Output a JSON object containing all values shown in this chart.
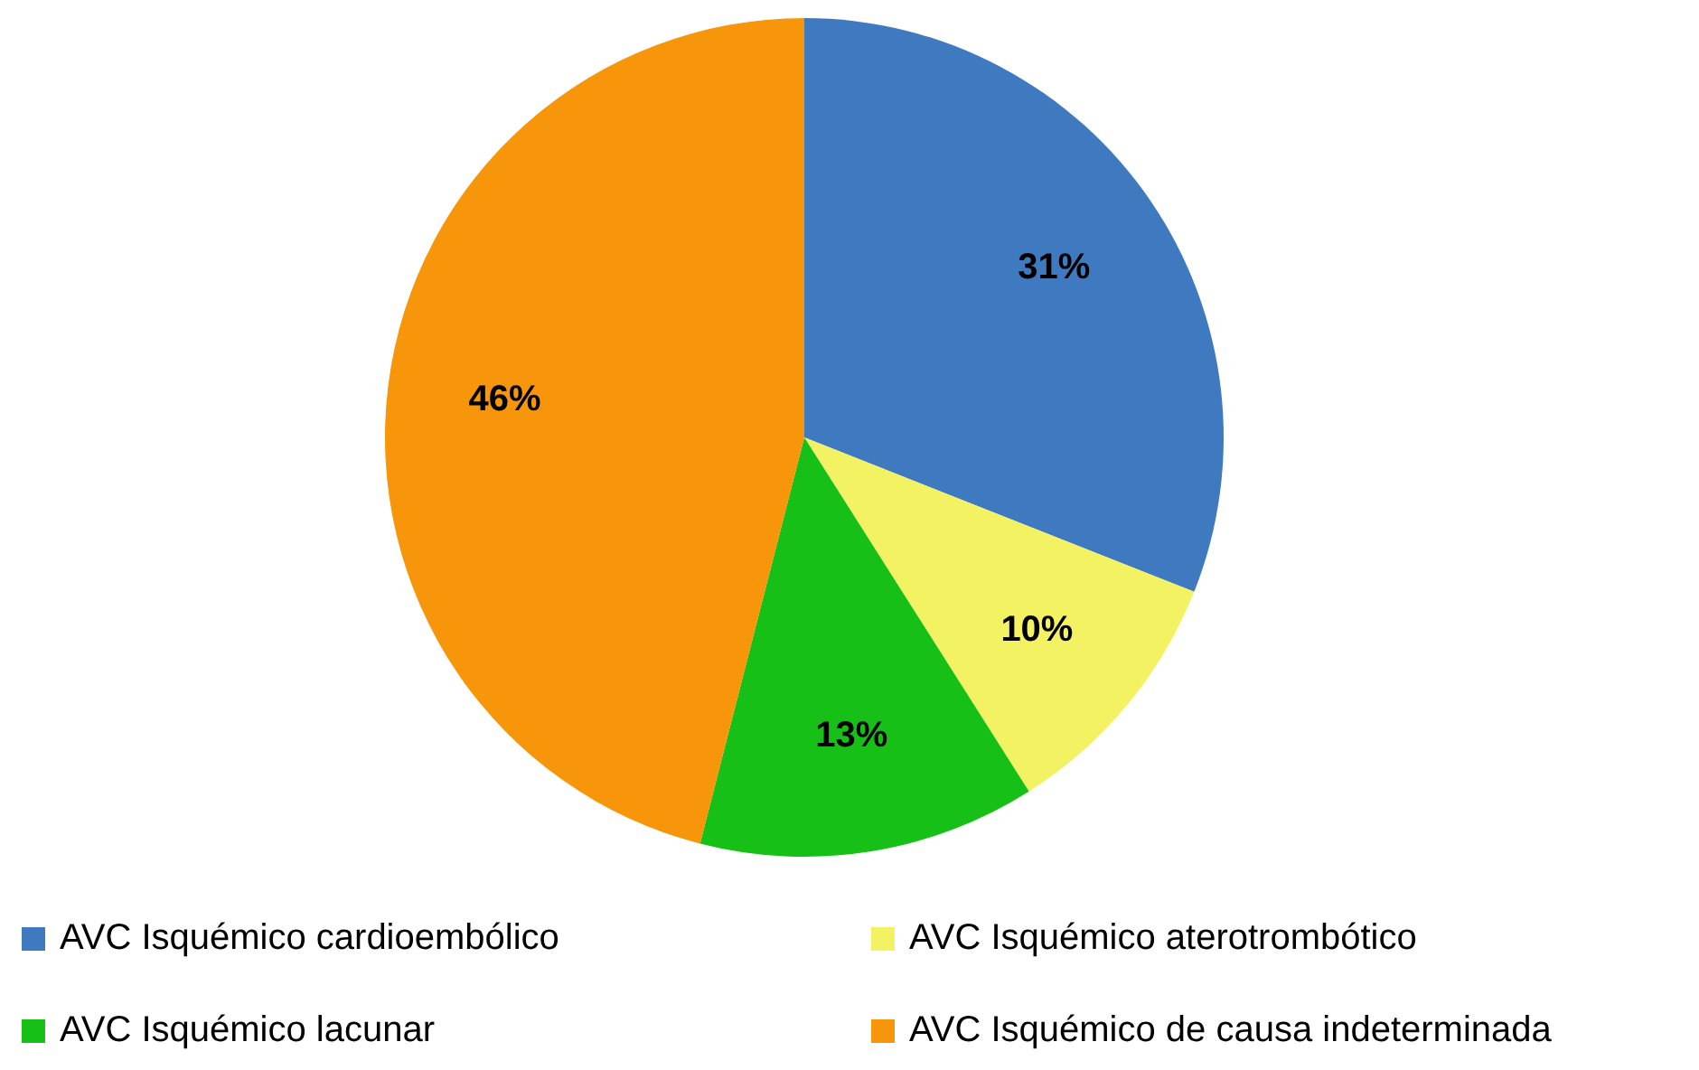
{
  "chart_data": {
    "type": "pie",
    "categories": [
      "AVC Isquémico cardioembólico",
      "AVC Isquémico aterotrombótico",
      "AVC Isquémico lacunar",
      "AVC Isquémico de causa indeterminada"
    ],
    "values": [
      31,
      10,
      13,
      46
    ],
    "value_labels": [
      "31%",
      "10%",
      "13%",
      "46%"
    ],
    "colors": [
      "#3f7ac0",
      "#f2f262",
      "#16c016",
      "#f7960a"
    ],
    "legend": "bottom"
  }
}
